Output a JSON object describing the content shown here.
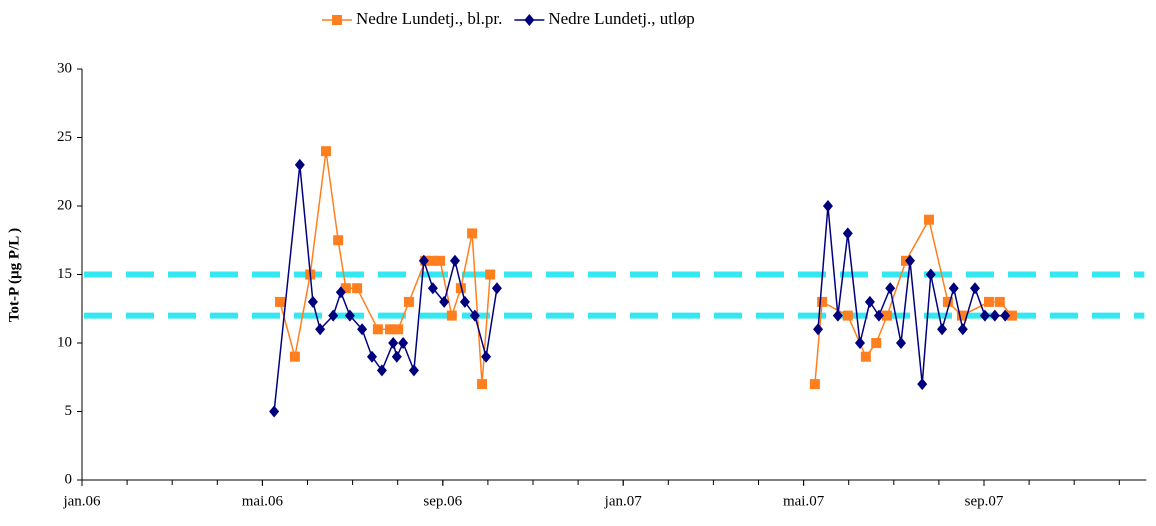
{
  "chart_data": {
    "type": "line",
    "ylabel": "Tot-P (µg P/L )",
    "xlim": [
      0,
      23.6
    ],
    "ylim": [
      0,
      30
    ],
    "yticks": [
      0,
      5,
      10,
      15,
      20,
      25,
      30
    ],
    "xticks": [
      {
        "value": 0,
        "label": "jan.06"
      },
      {
        "value": 4,
        "label": "mai.06"
      },
      {
        "value": 8,
        "label": "sep.06"
      },
      {
        "value": 12,
        "label": "jan.07"
      },
      {
        "value": 16,
        "label": "mai.07"
      },
      {
        "value": 20,
        "label": "sep.07"
      }
    ],
    "reference_lines": [
      {
        "value": 15,
        "color": "#33e8f0"
      },
      {
        "value": 12,
        "color": "#33e8f0"
      }
    ],
    "series": [
      {
        "name": "Nedre Lundetj., bl.pr.",
        "color": "#ff7f1e",
        "marker": "square",
        "x": [
          4.39,
          4.72,
          5.06,
          5.41,
          5.68,
          5.85,
          6.1,
          6.56,
          6.83,
          7.01,
          7.25,
          7.61,
          7.78,
          7.94,
          8.2,
          8.4,
          8.65,
          8.87,
          9.05,
          null,
          16.25,
          16.41,
          16.98,
          17.38,
          17.61,
          17.85,
          18.27,
          18.78,
          19.2,
          19.51,
          20.11,
          20.35,
          20.62
        ],
        "values": [
          13,
          9,
          15,
          24,
          17.5,
          14,
          14,
          11,
          11,
          11,
          13,
          16,
          16,
          16,
          12,
          14,
          18,
          7,
          15,
          null,
          7,
          13,
          12,
          9,
          10,
          12,
          16,
          19,
          13,
          12,
          13,
          13,
          12
        ]
      },
      {
        "name": "Nedre Lundetj., utløp",
        "color": "#00007f",
        "marker": "diamond",
        "x": [
          4.26,
          4.83,
          5.12,
          5.28,
          5.57,
          5.74,
          5.94,
          6.21,
          6.43,
          6.65,
          6.9,
          6.98,
          7.12,
          7.36,
          7.58,
          7.78,
          8.03,
          8.27,
          8.49,
          8.71,
          8.96,
          9.2,
          null,
          16.32,
          16.54,
          16.76,
          16.98,
          17.25,
          17.47,
          17.67,
          17.92,
          18.16,
          18.36,
          18.63,
          18.82,
          19.07,
          19.33,
          19.53,
          19.8,
          20.02,
          20.24,
          20.47
        ],
        "values": [
          5,
          23,
          13,
          11,
          12,
          13.7,
          12,
          11,
          9,
          8,
          10,
          9,
          10,
          8,
          16,
          14,
          13,
          16,
          13,
          12,
          9,
          14,
          null,
          11,
          20,
          12,
          18,
          10,
          13,
          12,
          14,
          10,
          16,
          7,
          15,
          11,
          14,
          11,
          14,
          12,
          12,
          12
        ]
      }
    ]
  }
}
